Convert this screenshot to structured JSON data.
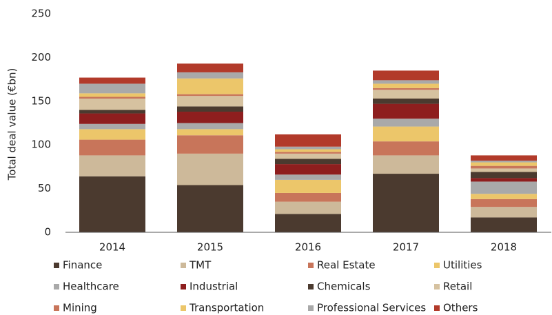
{
  "chart_data": {
    "type": "stacked_bar",
    "y_label": "Total deal value (€bn)",
    "categories": [
      "2014",
      "2015",
      "2016",
      "2017",
      "2018"
    ],
    "series": [
      {
        "name": "Finance",
        "color": "#4b3a2f",
        "values": [
          64,
          54,
          21,
          67,
          17
        ]
      },
      {
        "name": "TMT",
        "color": "#cdb99a",
        "values": [
          24,
          36,
          14,
          21,
          12
        ]
      },
      {
        "name": "Real Estate",
        "color": "#c8755a",
        "values": [
          18,
          21,
          10,
          16,
          9
        ]
      },
      {
        "name": "Utilities",
        "color": "#ecc66a",
        "values": [
          12,
          7,
          15,
          17,
          6
        ]
      },
      {
        "name": "Healthcare",
        "color": "#a9a9a9",
        "values": [
          6,
          7,
          6,
          9,
          14
        ]
      },
      {
        "name": "Industrial",
        "color": "#8e1e1e",
        "values": [
          12,
          13,
          12,
          17,
          4
        ]
      },
      {
        "name": "Chemicals",
        "color": "#4b3a2f",
        "values": [
          4,
          6,
          6,
          6,
          7
        ]
      },
      {
        "name": "Retail",
        "color": "#d6c2a0",
        "values": [
          13,
          12,
          6,
          10,
          4
        ]
      },
      {
        "name": "Mining",
        "color": "#c8755a",
        "values": [
          2,
          2,
          2,
          2,
          3
        ]
      },
      {
        "name": "Transportation",
        "color": "#ecc66a",
        "values": [
          4,
          18,
          3,
          5,
          4
        ]
      },
      {
        "name": "Professional Services",
        "color": "#a9a9a9",
        "values": [
          11,
          7,
          3,
          4,
          2
        ]
      },
      {
        "name": "Others",
        "color": "#b23a2a",
        "values": [
          7,
          10,
          14,
          11,
          6
        ]
      }
    ],
    "ylim": [
      0,
      250
    ],
    "yticks": [
      0,
      50,
      100,
      150,
      200,
      250
    ],
    "grid": false,
    "legend": "bottom"
  }
}
